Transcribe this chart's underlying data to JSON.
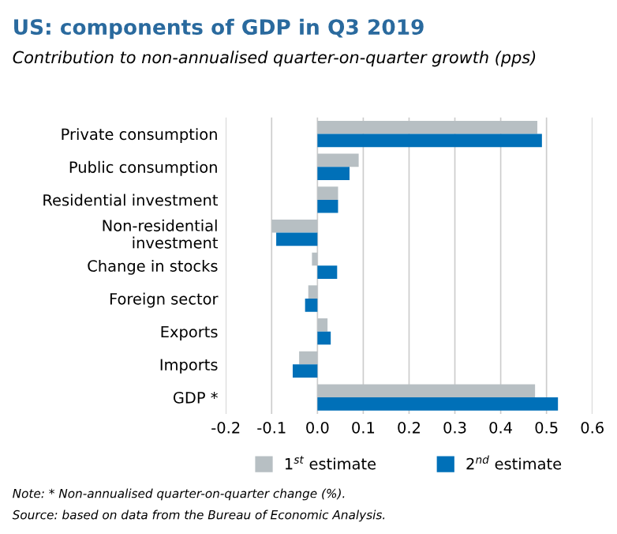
{
  "chart_data": {
    "type": "bar",
    "orientation": "horizontal",
    "title": "US: components of GDP in Q3 2019",
    "subtitle": "Contribution to non-annualised quarter-on-quarter growth (pps)",
    "categories": [
      "Private consumption",
      "Public consumption",
      "Residential investment",
      "Non-residential\ninvestment",
      "Change in stocks",
      "Foreign sector",
      "Exports",
      "Imports",
      "GDP *"
    ],
    "series": [
      {
        "name": "1$^{st}$ estimate",
        "color": "#b7bfc3",
        "values": [
          0.48,
          0.09,
          0.045,
          -0.1,
          -0.012,
          -0.02,
          0.022,
          -0.04,
          0.475
        ]
      },
      {
        "name": "2$^{nd}$ estimate",
        "color": "#0070b8",
        "values": [
          0.49,
          0.07,
          0.045,
          -0.09,
          0.043,
          -0.027,
          0.029,
          -0.054,
          0.525
        ]
      }
    ],
    "xlim": [
      -0.2,
      0.6
    ],
    "xticks": [
      {
        "value": -0.2,
        "label": "-0.2"
      },
      {
        "value": -0.1,
        "label": "-0.1"
      },
      {
        "value": 0.0,
        "label": "0.0"
      },
      0.1,
      0.2,
      0.3,
      0.4,
      0.5,
      0.6
    ],
    "grid": "x",
    "legend": "bottom",
    "annotations": [
      "Note: * Non-annualised quarter-on-quarter change (%).",
      "Source: based on data from the Bureau of Economic Analysis."
    ]
  }
}
